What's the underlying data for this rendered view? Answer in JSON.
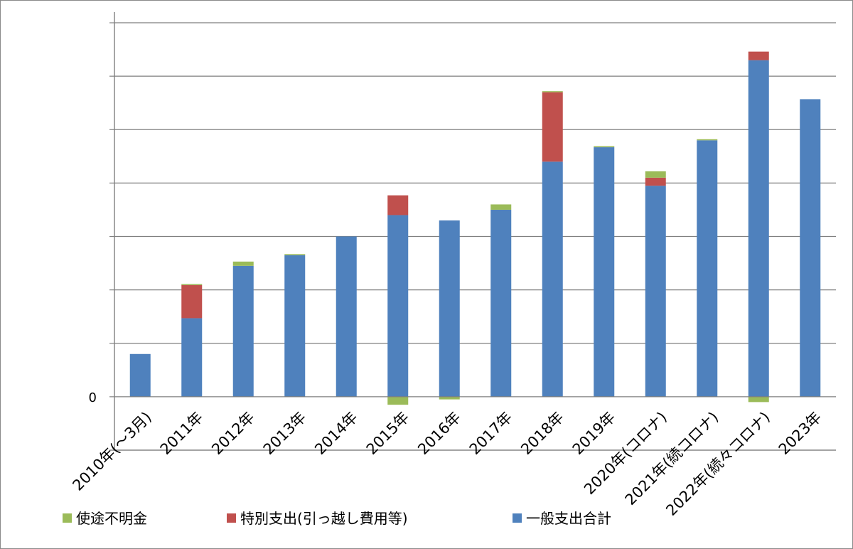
{
  "chart_data": {
    "type": "bar",
    "stacked": true,
    "title": "",
    "xlabel": "",
    "ylabel": "",
    "grid": true,
    "legend_position": "bottom",
    "y_tick_labels": [
      "0"
    ],
    "ylim": [
      -1.0,
      7.2
    ],
    "categories": [
      "2010年(～3月)",
      "2011年",
      "2012年",
      "2013年",
      "2014年",
      "2015年",
      "2016年",
      "2017年",
      "2018年",
      "2019年",
      "2020年(コロナ)",
      "2021年(続コロナ)",
      "2022年(続々コロナ)",
      "2023年"
    ],
    "series": [
      {
        "name": "使途不明金",
        "color": "#9bbb59",
        "values": [
          0,
          0.02,
          0.08,
          0.02,
          0,
          -0.15,
          -0.05,
          0.1,
          0.02,
          0.02,
          0.12,
          0.02,
          -0.1,
          0
        ]
      },
      {
        "name": "特別支出(引っ越し費用等)",
        "color": "#c0504d",
        "values": [
          0,
          0.62,
          0,
          0,
          0,
          0.37,
          0,
          0,
          1.3,
          0,
          0.15,
          0,
          0.16,
          0
        ]
      },
      {
        "name": "一般支出合計",
        "color": "#4f81bd",
        "values": [
          0.8,
          1.47,
          2.45,
          2.65,
          3.0,
          3.4,
          3.3,
          3.5,
          4.4,
          4.67,
          3.95,
          4.8,
          6.3,
          5.57
        ]
      }
    ]
  }
}
